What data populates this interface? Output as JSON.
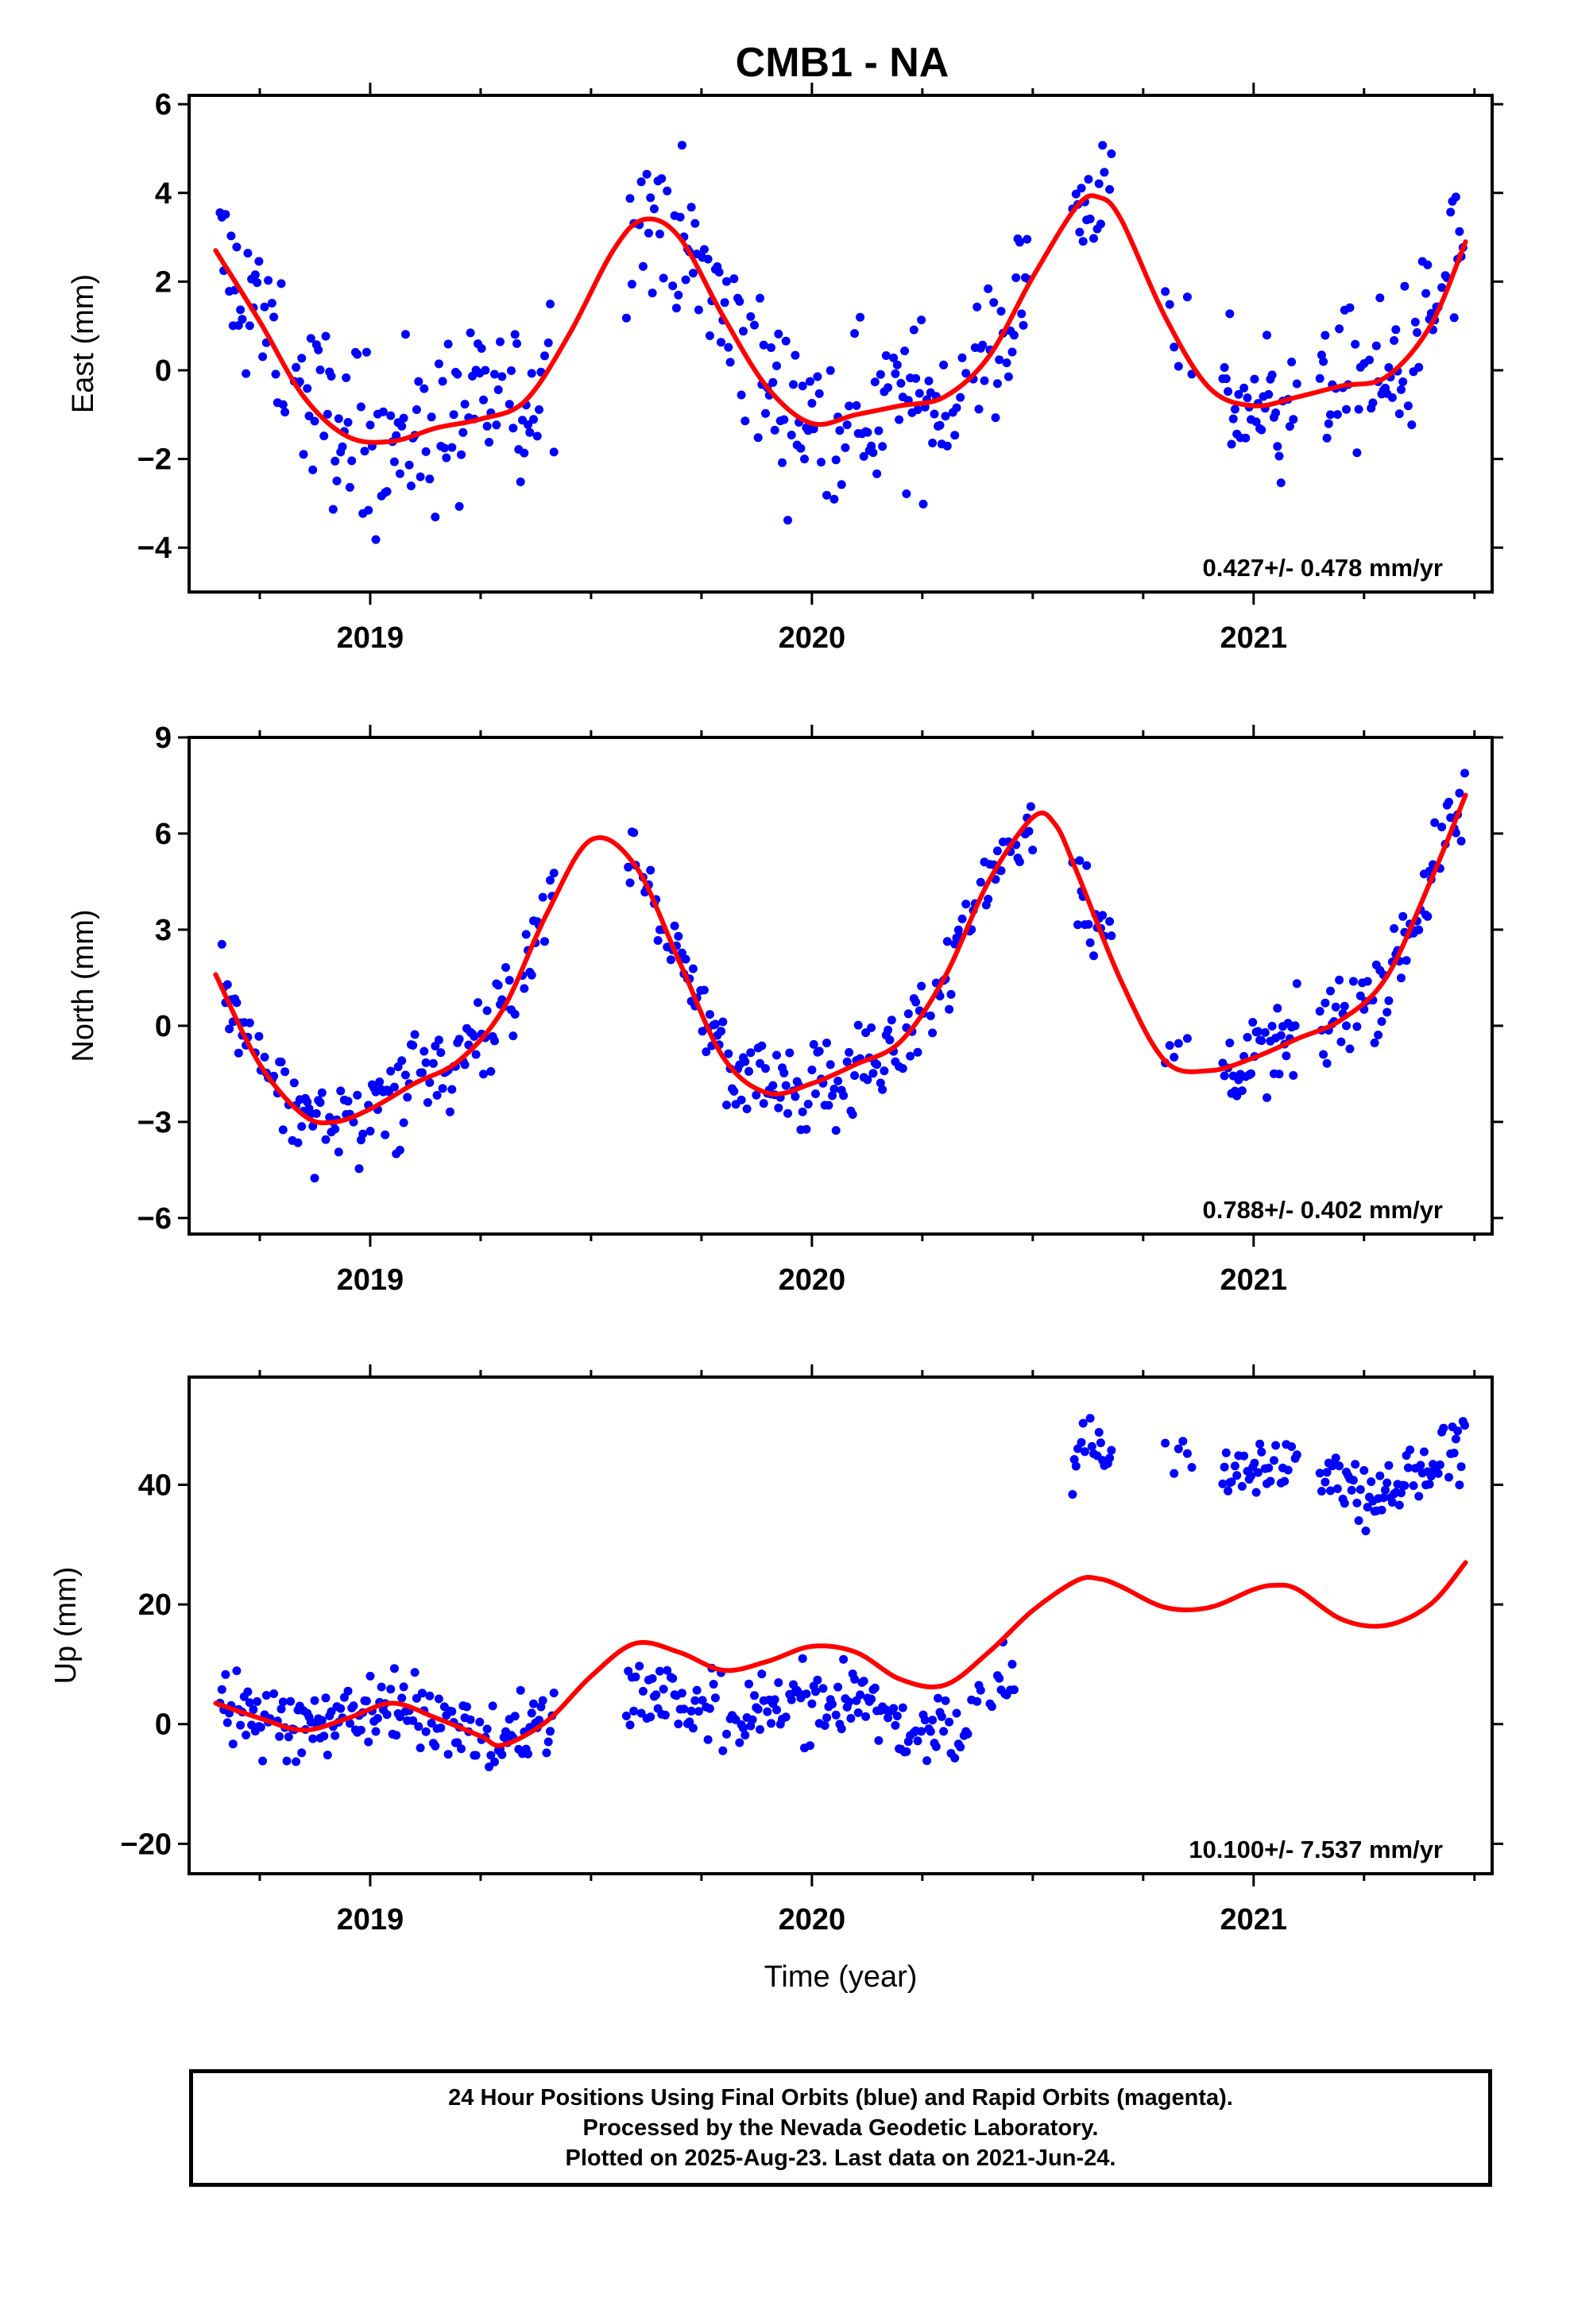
{
  "figure": {
    "title": "CMB1 - NA",
    "xlabel": "Time (year)",
    "footer": [
      "24 Hour Positions Using Final Orbits (blue) and Rapid Orbits (magenta).",
      "Processed by the Nevada Geodetic Laboratory.",
      "Plotted on 2025-Aug-23. Last data on 2021-Jun-24."
    ],
    "colors": {
      "points": "#0000ff",
      "fit": "#ff0000",
      "frame": "#000000"
    }
  },
  "chart_data": [
    {
      "type": "scatter",
      "ylabel": "East (mm)",
      "rate_text": "0.427+/- 0.478 mm/yr",
      "xlim": [
        2018.59,
        2021.54
      ],
      "ylim": [
        -5.0,
        6.2
      ],
      "yticks": [
        6,
        4,
        2,
        0,
        -2,
        -4
      ],
      "ytick_labels": [
        "6",
        "4",
        "2",
        "0",
        "−2",
        "−4"
      ],
      "xticks": [
        2019,
        2020,
        2021
      ],
      "xtick_labels": [
        "2019",
        "2020",
        "2021"
      ],
      "fit": {
        "name": "fit",
        "x": [
          2018.65,
          2018.75,
          2018.85,
          2018.95,
          2019.05,
          2019.15,
          2019.25,
          2019.35,
          2019.45,
          2019.55,
          2019.62,
          2019.7,
          2019.8,
          2019.9,
          2020.0,
          2020.1,
          2020.2,
          2020.3,
          2020.4,
          2020.5,
          2020.6,
          2020.65,
          2020.7,
          2020.8,
          2020.9,
          2021.0,
          2021.1,
          2021.2,
          2021.3,
          2021.4,
          2021.48
        ],
        "y": [
          2.7,
          1.1,
          -0.6,
          -1.5,
          -1.6,
          -1.3,
          -1.1,
          -0.7,
          0.8,
          2.7,
          3.4,
          3.0,
          1.2,
          -0.4,
          -1.2,
          -1.0,
          -0.8,
          -0.6,
          0.3,
          2.1,
          3.7,
          3.9,
          3.4,
          1.2,
          -0.4,
          -0.8,
          -0.6,
          -0.35,
          -0.15,
          1.0,
          2.9
        ]
      },
      "series": [
        {
          "name": "final orbits",
          "segments": [
            {
              "start": 2018.66,
              "end": 2019.42,
              "step": 0.0042,
              "noise": 1.3
            },
            {
              "start": 2019.58,
              "end": 2020.5,
              "step": 0.0042,
              "noise": 1.2
            },
            {
              "start": 2020.59,
              "end": 2020.68,
              "step": 0.004,
              "noise": 0.8
            },
            {
              "start": 2020.8,
              "end": 2020.86,
              "step": 0.01,
              "noise": 1.0
            },
            {
              "start": 2020.93,
              "end": 2021.1,
              "step": 0.004,
              "noise": 1.1
            },
            {
              "start": 2021.15,
              "end": 2021.48,
              "step": 0.004,
              "noise": 1.1
            }
          ]
        }
      ]
    },
    {
      "type": "scatter",
      "ylabel": "North (mm)",
      "rate_text": "0.788+/- 0.402 mm/yr",
      "xlim": [
        2018.59,
        2021.54
      ],
      "ylim": [
        -6.5,
        9.0
      ],
      "yticks": [
        9,
        6,
        3,
        0,
        -3,
        -6
      ],
      "ytick_labels": [
        "9",
        "6",
        "3",
        "0",
        "−3",
        "−6"
      ],
      "xticks": [
        2019,
        2020,
        2021
      ],
      "xtick_labels": [
        "2019",
        "2020",
        "2021"
      ],
      "fit": {
        "name": "fit",
        "x": [
          2018.65,
          2018.75,
          2018.85,
          2018.92,
          2019.0,
          2019.1,
          2019.2,
          2019.3,
          2019.4,
          2019.5,
          2019.6,
          2019.7,
          2019.8,
          2019.9,
          2020.0,
          2020.1,
          2020.2,
          2020.3,
          2020.4,
          2020.5,
          2020.55,
          2020.6,
          2020.7,
          2020.8,
          2020.9,
          2021.0,
          2021.1,
          2021.2,
          2021.3,
          2021.4,
          2021.48
        ],
        "y": [
          1.6,
          -1.2,
          -2.8,
          -3.0,
          -2.6,
          -1.8,
          -1.1,
          0.5,
          3.5,
          5.8,
          5.0,
          2.0,
          -1.0,
          -2.1,
          -1.8,
          -1.2,
          -0.5,
          1.5,
          4.5,
          6.5,
          6.3,
          4.8,
          1.4,
          -1.1,
          -1.4,
          -1.0,
          -0.4,
          0.2,
          1.5,
          4.5,
          7.2
        ]
      },
      "series": [
        {
          "name": "final orbits",
          "segments": [
            {
              "start": 2018.66,
              "end": 2019.42,
              "step": 0.0042,
              "noise": 0.9
            },
            {
              "start": 2019.58,
              "end": 2020.5,
              "step": 0.0042,
              "noise": 0.9
            },
            {
              "start": 2020.59,
              "end": 2020.68,
              "step": 0.004,
              "noise": 0.9
            },
            {
              "start": 2020.8,
              "end": 2020.86,
              "step": 0.01,
              "noise": 1.1
            },
            {
              "start": 2020.93,
              "end": 2021.1,
              "step": 0.004,
              "noise": 0.8
            },
            {
              "start": 2021.15,
              "end": 2021.48,
              "step": 0.004,
              "noise": 0.9
            }
          ]
        }
      ]
    },
    {
      "type": "scatter",
      "ylabel": "Up (mm)",
      "rate_text": "10.100+/- 7.537 mm/yr",
      "xlim": [
        2018.59,
        2021.54
      ],
      "ylim": [
        -25,
        58
      ],
      "yticks": [
        40,
        20,
        0,
        -20
      ],
      "ytick_labels": [
        "40",
        "20",
        "0",
        "−20"
      ],
      "xticks": [
        2019,
        2020,
        2021
      ],
      "xtick_labels": [
        "2019",
        "2020",
        "2021"
      ],
      "fit": {
        "name": "fit",
        "x": [
          2018.65,
          2018.75,
          2018.85,
          2018.95,
          2019.05,
          2019.15,
          2019.25,
          2019.3,
          2019.4,
          2019.5,
          2019.6,
          2019.7,
          2019.8,
          2019.9,
          2020.0,
          2020.1,
          2020.2,
          2020.3,
          2020.4,
          2020.5,
          2020.6,
          2020.65,
          2020.7,
          2020.8,
          2020.9,
          2021.0,
          2021.05,
          2021.1,
          2021.2,
          2021.3,
          2021.4,
          2021.48
        ],
        "y": [
          3.5,
          1.0,
          -1.0,
          1.0,
          3.5,
          1.0,
          -2.0,
          -3.5,
          0.5,
          8.0,
          13.5,
          12.0,
          9.0,
          10.5,
          13.0,
          12.0,
          7.5,
          6.5,
          12.0,
          19.0,
          24.0,
          24.3,
          23.0,
          19.5,
          19.5,
          22.5,
          23.2,
          22.5,
          17.5,
          16.5,
          20.0,
          27.0
        ]
      },
      "series": [
        {
          "name": "final orbits",
          "segments": [
            {
              "start": 2018.66,
              "end": 2019.42,
              "step": 0.0042,
              "noise": 4.0,
              "offset": 0
            },
            {
              "start": 2019.58,
              "end": 2020.46,
              "step": 0.0042,
              "noise": 4.0,
              "offset": -8
            },
            {
              "start": 2020.59,
              "end": 2020.68,
              "step": 0.004,
              "noise": 4.0,
              "offset": 22
            },
            {
              "start": 2020.8,
              "end": 2020.86,
              "step": 0.01,
              "noise": 3.5,
              "offset": 25
            },
            {
              "start": 2020.93,
              "end": 2021.1,
              "step": 0.004,
              "noise": 3.0,
              "offset": 21
            },
            {
              "start": 2021.15,
              "end": 2021.48,
              "step": 0.004,
              "noise": 3.5,
              "offset": 22
            }
          ]
        }
      ]
    }
  ]
}
